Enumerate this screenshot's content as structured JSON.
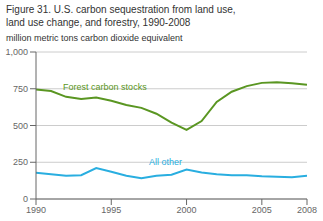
{
  "chart_data": {
    "type": "line",
    "title": "Figure 31. U.S. carbon sequestration from land use,",
    "subtitle": "land use change, and forestry, 1990-2008",
    "y_label": "million metric tons carbon dioxide equivalent",
    "x": [
      1990,
      1991,
      1992,
      1993,
      1994,
      1995,
      1996,
      1997,
      1998,
      1999,
      2000,
      2001,
      2002,
      2003,
      2004,
      2005,
      2006,
      2007,
      2008
    ],
    "series": [
      {
        "color": "#5a9622",
        "values": [
          745,
          735,
          695,
          680,
          690,
          668,
          640,
          620,
          580,
          520,
          470,
          530,
          660,
          730,
          768,
          790,
          795,
          788,
          778
        ]
      },
      {
        "color": "#29aee0",
        "values": [
          178,
          168,
          158,
          162,
          210,
          185,
          158,
          142,
          158,
          165,
          200,
          180,
          168,
          162,
          162,
          155,
          152,
          148,
          158
        ]
      }
    ],
    "xlim": [
      1990,
      2008
    ],
    "xticks": [
      1990,
      1995,
      2000,
      2005,
      2008
    ],
    "ylim": [
      0,
      1000
    ],
    "yticks": [
      0,
      250,
      500,
      750,
      {
        "value": 1000,
        "label": "1,000"
      }
    ],
    "grid": true,
    "annotations": [
      {
        "text": "Forest carbon stocks",
        "x": 1991.8,
        "y": 730,
        "color": "#5a9622"
      },
      {
        "text": "All other",
        "x": 1997.5,
        "y": 218,
        "color": "#29aee0"
      }
    ]
  }
}
